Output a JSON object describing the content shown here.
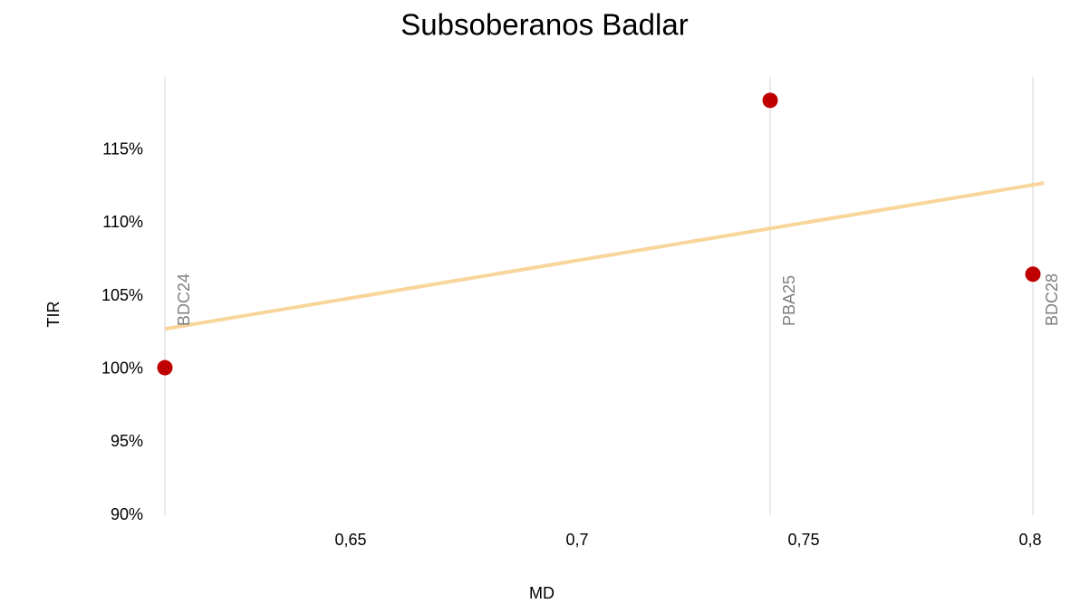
{
  "chart_data": {
    "type": "scatter",
    "title": "Subsoberanos Badlar",
    "xlabel": "MD",
    "ylabel": "TIR",
    "series": [
      {
        "name": null,
        "color": "#c00000",
        "labels": [
          "BDC24",
          "PBA25",
          "BDC28"
        ],
        "x": [
          0.609,
          0.7426,
          0.8006
        ],
        "values": [
          100.1,
          118.4,
          106.5
        ]
      }
    ],
    "trendline": {
      "type": "linear",
      "color": "#f8d59a"
    },
    "xlim": [
      0.609,
      0.803
    ],
    "xticks": [
      {
        "value": 0.65,
        "label": "0,65"
      },
      {
        "value": 0.7,
        "label": "0,7"
      },
      {
        "value": 0.75,
        "label": "0,75"
      },
      {
        "value": 0.8,
        "label": "0,8"
      }
    ],
    "ylim": [
      90,
      120
    ],
    "yticks": [
      {
        "value": 90,
        "label": "90%"
      },
      {
        "value": 95,
        "label": "95%"
      },
      {
        "value": 100,
        "label": "100%"
      },
      {
        "value": 105,
        "label": "105%"
      },
      {
        "value": 110,
        "label": "110%"
      },
      {
        "value": 115,
        "label": "115%"
      }
    ],
    "drop_lines": true
  }
}
